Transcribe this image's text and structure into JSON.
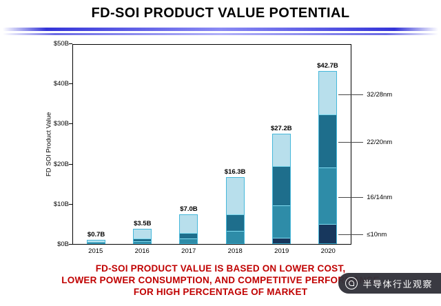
{
  "slide": {
    "title": "FD-SOI PRODUCT VALUE POTENTIAL",
    "accent_blue": "#3434d8",
    "footer_color": "#c00000",
    "footer_lines": [
      "FD-SOI PRODUCT VALUE IS BASED ON LOWER COST,",
      "LOWER POWER CONSUMPTION, AND COMPETITIVE PERFORMANCE",
      "FOR HIGH PERCENTAGE OF MARKET"
    ]
  },
  "watermark": {
    "text": "半导体行业观察",
    "bg": "#32323a",
    "text_color": "#ffffff"
  },
  "chart_data": {
    "type": "bar",
    "stacked": true,
    "title": "",
    "xlabel": "",
    "ylabel": "FD SOI Product Value",
    "ylim": [
      0,
      50
    ],
    "grid": false,
    "categories": [
      "2015",
      "2016",
      "2017",
      "2018",
      "2019",
      "2020"
    ],
    "ytick_labels": [
      "$0B",
      "$10B",
      "$20B",
      "$30B",
      "$40B",
      "$50B"
    ],
    "totals": [
      0.7,
      3.5,
      7.0,
      16.3,
      27.2,
      42.7
    ],
    "totals_labels": [
      "$0.7B",
      "$3.5B",
      "$7.0B",
      "$16.3B",
      "$27.2B",
      "$42.7B"
    ],
    "series": [
      {
        "name": "≤10nm",
        "color": "#17375d",
        "values": [
          0,
          0,
          0,
          0,
          1.2,
          4.7
        ]
      },
      {
        "name": "16/14nm",
        "color": "#2e8ca8",
        "values": [
          0,
          0.4,
          1.0,
          3.0,
          8.0,
          14.0
        ]
      },
      {
        "name": "22/20nm",
        "color": "#1e6e8c",
        "values": [
          0.1,
          0.6,
          1.5,
          4.0,
          9.8,
          13.3
        ]
      },
      {
        "name": "32/28nm",
        "color": "#b8dfec",
        "values": [
          0.6,
          2.5,
          4.5,
          9.3,
          8.2,
          10.7
        ]
      }
    ],
    "right_labels": [
      "32/28nm",
      "22/20nm",
      "16/14nm",
      "≤10nm"
    ],
    "bar_border_color": "#45b7da",
    "legend_position": "right-of-plot"
  }
}
